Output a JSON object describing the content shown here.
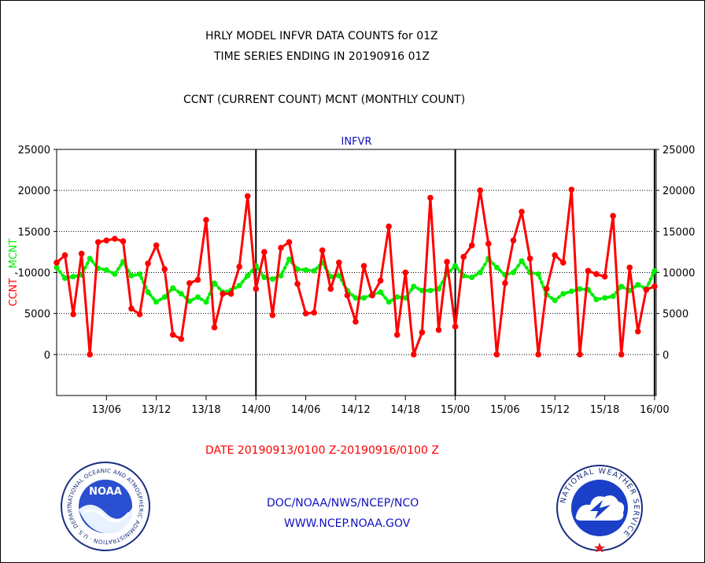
{
  "header": {
    "line1": "HRLY MODEL INFVR DATA COUNTS for 01Z",
    "line2": "TIME SERIES ENDING IN 20190916 01Z",
    "line3": "CCNT (CURRENT COUNT) MCNT (MONTHLY COUNT)"
  },
  "footer": {
    "date_range": "DATE 20190913/0100 Z-20190916/0100 Z",
    "org": "DOC/NOAA/NWS/NCEP/NCO",
    "url": "WWW.NCEP.NOAA.GOV"
  },
  "logos": {
    "noaa": {
      "center_text": "NOAA",
      "ring_text": "NATIONAL OCEANIC AND ATMOSPHERIC ADMINISTRATION · U.S. DEPARTMENT OF COMMERCE"
    },
    "nws": {
      "ring_text": "NATIONAL WEATHER SERVICE"
    }
  },
  "colors": {
    "ccnt": "#ff0000",
    "mcnt": "#00ee00",
    "title": "#1010c0",
    "axis": "#000000"
  },
  "chart_data": {
    "type": "line",
    "title": "INFVR",
    "ylabel_left": "CCNT",
    "ylabel_sep": ",",
    "ylabel_right_part": "MCNT",
    "yticks": [
      "25000",
      "20000",
      "15000",
      "10000",
      "5000",
      "0"
    ],
    "ytick_values": [
      25000,
      20000,
      15000,
      10000,
      5000,
      0
    ],
    "ylim": [
      -5000,
      25000
    ],
    "xtick_labels": [
      "13/06",
      "13/12",
      "13/18",
      "14/00",
      "14/06",
      "14/12",
      "14/18",
      "15/00",
      "15/06",
      "15/12",
      "15/18",
      "16/00"
    ],
    "xtick_hours": [
      6,
      12,
      18,
      24,
      30,
      36,
      42,
      48,
      54,
      60,
      66,
      72
    ],
    "day_boundaries": [
      24,
      48,
      72
    ],
    "xlim": [
      0,
      72.2
    ],
    "x_start": "20190913 01Z",
    "grid": true,
    "series": [
      {
        "name": "CCNT",
        "values": [
          11200,
          12100,
          4900,
          12300,
          0,
          13700,
          13900,
          14100,
          13800,
          5600,
          4900,
          11100,
          13300,
          10400,
          2400,
          1900,
          8700,
          9100,
          16400,
          3300,
          7400,
          7400,
          10700,
          19300,
          8000,
          12500,
          4800,
          13000,
          13700,
          8600,
          5000,
          5100,
          12700,
          8000,
          11200,
          7200,
          4000,
          10800,
          7200,
          9000,
          15600,
          2400,
          10000,
          0,
          2700,
          19100,
          3000,
          11300,
          3400,
          11900,
          13300,
          20000,
          13500,
          0,
          8700,
          13900,
          17400,
          11700,
          0,
          8000,
          12100,
          11200,
          20100,
          0,
          10200,
          9800,
          9500,
          16900,
          0,
          10600,
          2800,
          7900,
          8300
        ]
      },
      {
        "name": "MCNT",
        "values": [
          10600,
          9300,
          9500,
          9700,
          11700,
          10500,
          10300,
          9800,
          11300,
          9600,
          9800,
          7600,
          6400,
          7000,
          8100,
          7400,
          6500,
          7000,
          6400,
          8700,
          7600,
          7800,
          8400,
          9600,
          10800,
          9400,
          9200,
          9600,
          11600,
          10400,
          10300,
          10200,
          11200,
          9500,
          9600,
          7800,
          6900,
          6900,
          7300,
          7600,
          6400,
          7000,
          6900,
          8300,
          7800,
          7800,
          8000,
          9800,
          10800,
          9600,
          9400,
          10000,
          11700,
          10600,
          9700,
          10000,
          11400,
          10000,
          9800,
          7300,
          6600,
          7400,
          7700,
          8000,
          7900,
          6700,
          6900,
          7100,
          8300,
          7800,
          8500,
          8000,
          10200
        ]
      }
    ]
  }
}
